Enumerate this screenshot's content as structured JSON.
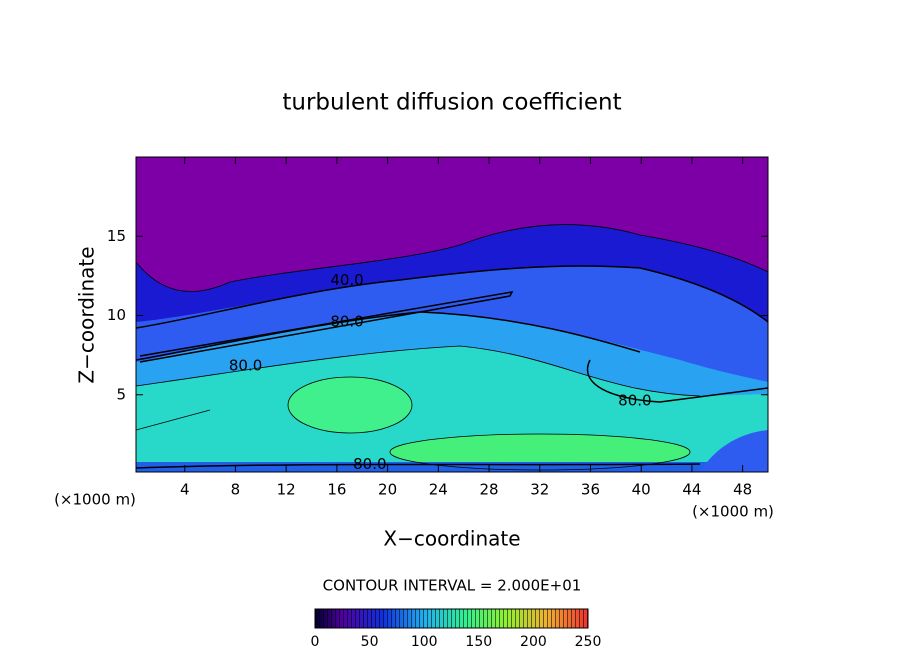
{
  "chart_data": {
    "type": "contour",
    "title": "turbulent diffusion coefficient",
    "x_label": "X−coordinate",
    "y_label": "Z−coordinate",
    "unit_label": "(×1000 m)",
    "xlim": [
      0,
      50
    ],
    "xticks": [
      4,
      8,
      12,
      16,
      20,
      24,
      28,
      32,
      36,
      40,
      44,
      48
    ],
    "ylim": [
      0,
      20
    ],
    "yticks": [
      5,
      10,
      15
    ],
    "contour_labels": [
      {
        "label": "40.0",
        "x": 16.8,
        "y": 12.2
      },
      {
        "label": "80.0",
        "x": 16.8,
        "y": 9.6
      },
      {
        "label": "80.0",
        "x": 8.8,
        "y": 6.8
      },
      {
        "label": "80.0",
        "x": 39.5,
        "y": 4.6
      },
      {
        "label": "80.0",
        "x": 18.6,
        "y": 0.6
      }
    ],
    "contour_interval": "CONTOUR INTERVAL = 2.000E+01",
    "colorbar": {
      "lim": [
        0,
        250
      ],
      "ticks": [
        0,
        50,
        100,
        150,
        200,
        250
      ]
    }
  }
}
